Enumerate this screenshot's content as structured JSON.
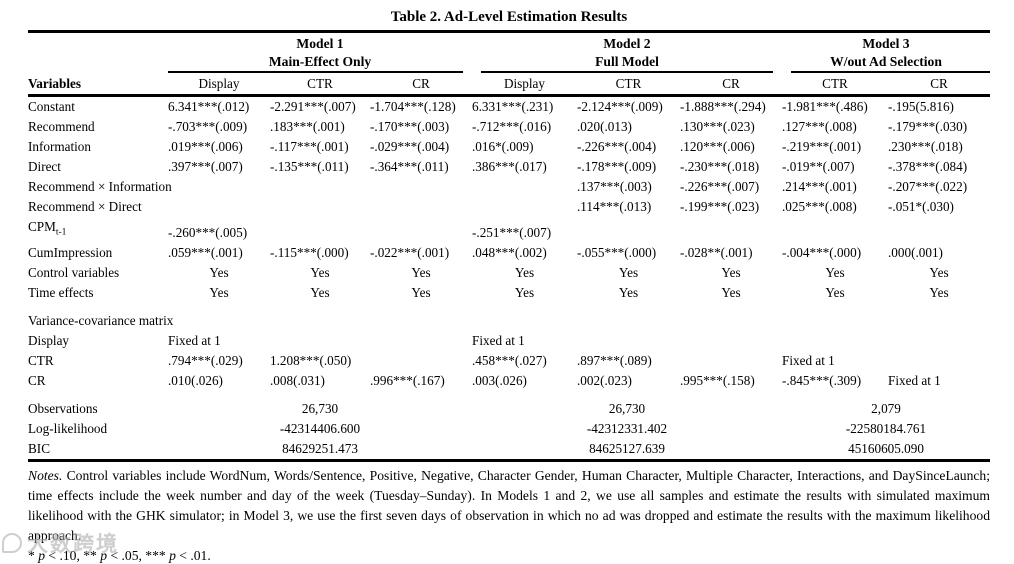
{
  "title": "Table 2. Ad-Level Estimation Results",
  "watermark": "大数跨境",
  "header": {
    "variables_label": "Variables",
    "groups": [
      {
        "name": "Model 1",
        "subtitle": "Main-Effect Only",
        "cols": [
          "Display",
          "CTR",
          "CR"
        ]
      },
      {
        "name": "Model 2",
        "subtitle": "Full Model",
        "cols": [
          "Display",
          "CTR",
          "CR"
        ]
      },
      {
        "name": "Model 3",
        "subtitle": "W/out Ad Selection",
        "cols": [
          "CTR",
          "CR"
        ]
      }
    ]
  },
  "table": {
    "rows": [
      {
        "label": "Constant",
        "cells": [
          "6.341***(.012)",
          "-2.291***(.007)",
          "-1.704***(.128)",
          "6.331***(.231)",
          "-2.124***(.009)",
          "-1.888***(.294)",
          "-1.981***(.486)",
          "-.195(5.816)"
        ]
      },
      {
        "label": "Recommend",
        "cells": [
          "-.703***(.009)",
          ".183***(.001)",
          "-.170***(.003)",
          "-.712***(.016)",
          ".020(.013)",
          ".130***(.023)",
          ".127***(.008)",
          "-.179***(.030)"
        ]
      },
      {
        "label": "Information",
        "cells": [
          ".019***(.006)",
          "-.117***(.001)",
          "-.029***(.004)",
          ".016*(.009)",
          "-.226***(.004)",
          ".120***(.006)",
          "-.219***(.001)",
          ".230***(.018)"
        ]
      },
      {
        "label": "Direct",
        "cells": [
          ".397***(.007)",
          "-.135***(.011)",
          "-.364***(.011)",
          ".386***(.017)",
          "-.178***(.009)",
          "-.230***(.018)",
          "-.019**(.007)",
          "-.378***(.084)"
        ]
      },
      {
        "label": "Recommend × Information",
        "cells": [
          "",
          "",
          "",
          "",
          ".137***(.003)",
          "-.226***(.007)",
          ".214***(.001)",
          "-.207***(.022)"
        ]
      },
      {
        "label": "Recommend × Direct",
        "cells": [
          "",
          "",
          "",
          "",
          ".114***(.013)",
          "-.199***(.023)",
          ".025***(.008)",
          "-.051*(.030)"
        ]
      },
      {
        "label": "CPM",
        "sub": "t-1",
        "cells": [
          "-.260***(.005)",
          "",
          "",
          "-.251***(.007)",
          "",
          "",
          "",
          ""
        ]
      },
      {
        "label": "CumImpression",
        "cells": [
          ".059***(.001)",
          "-.115***(.000)",
          "-.022***(.001)",
          ".048***(.002)",
          "-.055***(.000)",
          "-.028**(.001)",
          "-.004***(.000)",
          ".000(.001)"
        ]
      },
      {
        "label": "Control variables",
        "align": "center",
        "cells": [
          "Yes",
          "Yes",
          "Yes",
          "Yes",
          "Yes",
          "Yes",
          "Yes",
          "Yes"
        ]
      },
      {
        "label": "Time effects",
        "align": "center",
        "cells": [
          "Yes",
          "Yes",
          "Yes",
          "Yes",
          "Yes",
          "Yes",
          "Yes",
          "Yes"
        ]
      },
      {
        "type": "section",
        "gap": true,
        "label": "Variance-covariance matrix"
      },
      {
        "label": "Display",
        "cells": [
          "Fixed at 1",
          "",
          "",
          "Fixed at 1",
          "",
          "",
          "",
          ""
        ]
      },
      {
        "label": "CTR",
        "cells": [
          ".794***(.029)",
          "1.208***(.050)",
          "",
          ".458***(.027)",
          ".897***(.089)",
          "",
          "Fixed at 1",
          ""
        ]
      },
      {
        "label": "CR",
        "cells": [
          ".010(.026)",
          ".008(.031)",
          ".996***(.167)",
          ".003(.026)",
          ".002(.023)",
          ".995***(.158)",
          "-.845***(.309)",
          "Fixed at 1"
        ]
      },
      {
        "type": "stats",
        "gap": true,
        "label": "Observations",
        "cells": [
          "26,730",
          "26,730",
          "2,079"
        ]
      },
      {
        "type": "stats",
        "label": "Log-likelihood",
        "cells": [
          "-42314406.600",
          "-42312331.402",
          "-22580184.761"
        ]
      },
      {
        "type": "stats",
        "label": "BIC",
        "cells": [
          "84629251.473",
          "84625127.639",
          "45160605.090"
        ]
      }
    ]
  },
  "notes": {
    "label": "Notes.",
    "body": "Control variables include WordNum, Words/Sentence, Positive, Negative, Character Gender, Human Character, Multiple Character, Interactions, and DaySinceLaunch; time effects include the week number and day of the week (Tuesday–Sunday). In Models 1 and 2, we use all samples and estimate the results with simulated maximum likelihood with the GHK simulator; in Model 3, we use the first seven days of observation in which no ad was dropped and estimate the results with the maximum likelihood approach.",
    "sig": [
      "* ",
      "p",
      " < .10, ** ",
      "p",
      " < .05, *** ",
      "p",
      " < .01."
    ]
  }
}
